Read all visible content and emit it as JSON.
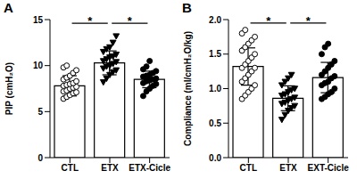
{
  "chart_data": [
    {
      "type": "bar",
      "title": "A",
      "y_label": "PIP (cmH₂O)",
      "categories": [
        "CTL",
        "ETX",
        "ETX-Cicle"
      ],
      "values": [
        7.8,
        10.3,
        8.5
      ],
      "errors": [
        1.1,
        1.3,
        0.9
      ],
      "points": [
        {
          "marker": "circle-open",
          "values": [
            6.4,
            6.6,
            6.8,
            7.0,
            7.1,
            7.2,
            7.3,
            7.5,
            7.6,
            7.7,
            7.8,
            7.9,
            8.0,
            8.1,
            8.3,
            8.5,
            8.7,
            8.9,
            9.2,
            9.5,
            9.8,
            10.0
          ]
        },
        {
          "marker": "triangle-down",
          "values": [
            8.2,
            8.6,
            9.0,
            9.3,
            9.5,
            9.7,
            9.9,
            10.0,
            10.2,
            10.4,
            10.5,
            10.7,
            10.9,
            11.0,
            11.2,
            11.5,
            11.8,
            12.0,
            12.5,
            13.2
          ]
        },
        {
          "marker": "circle",
          "values": [
            6.7,
            7.2,
            7.5,
            7.8,
            8.0,
            8.1,
            8.3,
            8.4,
            8.5,
            8.6,
            8.8,
            8.9,
            9.0,
            9.2,
            9.4,
            9.6,
            9.9,
            10.5
          ]
        }
      ],
      "color": "#000000",
      "ylim": [
        0,
        15
      ],
      "yticks": [
        0,
        5,
        10,
        15
      ],
      "annotations": [
        {
          "text": "*",
          "between": [
            "CTL",
            "ETX"
          ],
          "y": 14.6
        },
        {
          "text": "*",
          "between": [
            "ETX",
            "ETX-Cicle"
          ],
          "y": 14.6
        }
      ]
    },
    {
      "type": "bar",
      "title": "B",
      "y_label": "Compliance (ml/cmH₂O/kg)",
      "categories": [
        "CTL",
        "ETX",
        "EXT-Cicle"
      ],
      "values": [
        1.32,
        0.86,
        1.16
      ],
      "errors": [
        0.27,
        0.18,
        0.22
      ],
      "points": [
        {
          "marker": "circle-open",
          "values": [
            0.85,
            0.9,
            0.95,
            1.0,
            1.05,
            1.1,
            1.15,
            1.2,
            1.25,
            1.3,
            1.3,
            1.35,
            1.4,
            1.45,
            1.5,
            1.55,
            1.6,
            1.65,
            1.7,
            1.75,
            1.8,
            1.85
          ]
        },
        {
          "marker": "triangle-down",
          "values": [
            0.55,
            0.62,
            0.68,
            0.72,
            0.75,
            0.78,
            0.8,
            0.83,
            0.85,
            0.87,
            0.9,
            0.92,
            0.95,
            0.98,
            1.0,
            1.05,
            1.1,
            1.15,
            1.2
          ]
        },
        {
          "marker": "circle",
          "values": [
            0.85,
            0.88,
            0.92,
            0.95,
            1.0,
            1.05,
            1.08,
            1.1,
            1.15,
            1.18,
            1.2,
            1.25,
            1.3,
            1.35,
            1.4,
            1.5,
            1.6,
            1.65
          ]
        }
      ],
      "color": "#000000",
      "ylim": [
        0,
        2
      ],
      "yticks": [
        {
          "value": 0,
          "label": "0.0"
        },
        0.5,
        {
          "value": 1,
          "label": "1.0"
        },
        1.5,
        {
          "value": 2,
          "label": "2.0"
        }
      ],
      "annotations": [
        {
          "text": "*",
          "between": [
            "CTL",
            "ETX"
          ],
          "y": 1.95
        },
        {
          "text": "*",
          "between": [
            "ETX",
            "EXT-Cicle"
          ],
          "y": 1.95
        }
      ]
    }
  ]
}
